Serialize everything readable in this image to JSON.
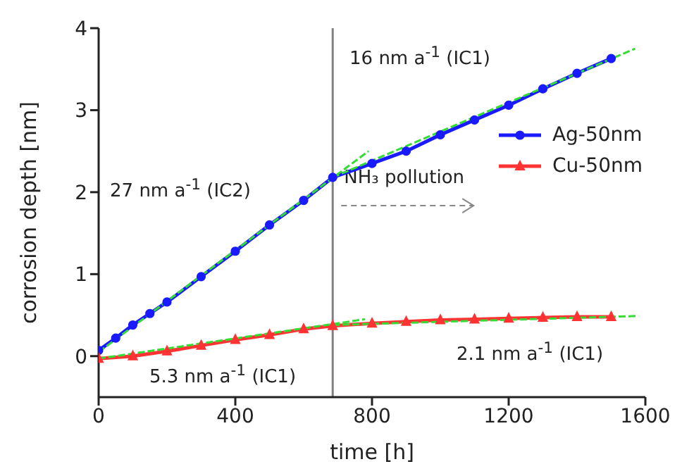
{
  "chart_data": {
    "type": "line",
    "xlabel": "time [h]",
    "ylabel": "corrosion depth [nm]",
    "xlim": [
      0,
      1600
    ],
    "xticks": [
      0,
      400,
      800,
      1200,
      1600
    ],
    "ylim": [
      -0.5,
      4
    ],
    "yticks": [
      0,
      1,
      2,
      3,
      4
    ],
    "grid": false,
    "legend": "right",
    "line_style": "solid",
    "series": [
      {
        "name": "Ag-50nm",
        "color": "#1a1aff",
        "marker": "circle",
        "x": [
          0,
          50,
          100,
          150,
          200,
          300,
          400,
          500,
          600,
          685,
          800,
          900,
          1000,
          1100,
          1200,
          1300,
          1400,
          1500
        ],
        "values": [
          0.07,
          0.22,
          0.38,
          0.52,
          0.66,
          0.97,
          1.28,
          1.6,
          1.9,
          2.18,
          2.35,
          2.5,
          2.7,
          2.88,
          3.06,
          3.26,
          3.45,
          3.63
        ]
      },
      {
        "name": "Cu-50nm",
        "color": "#ff3333",
        "marker": "triangle",
        "x": [
          0,
          100,
          200,
          300,
          400,
          500,
          600,
          685,
          800,
          900,
          1000,
          1100,
          1200,
          1300,
          1400,
          1500
        ],
        "values": [
          -0.03,
          0.0,
          0.06,
          0.13,
          0.2,
          0.26,
          0.33,
          0.37,
          0.4,
          0.42,
          0.44,
          0.45,
          0.46,
          0.47,
          0.48,
          0.48
        ]
      },
      {
        "type": "line",
        "color": "#33dd33",
        "marker": "none",
        "line_style": "dashed",
        "x": [
          0,
          790
        ],
        "values": [
          0.05,
          2.5
        ]
      },
      {
        "type": "line",
        "color": "#33dd33",
        "marker": "none",
        "line_style": "dashed",
        "x": [
          685,
          1570
        ],
        "values": [
          2.18,
          3.75
        ]
      },
      {
        "type": "line",
        "color": "#33dd33",
        "marker": "none",
        "line_style": "dashed",
        "x": [
          0,
          780
        ],
        "values": [
          -0.03,
          0.45
        ]
      },
      {
        "type": "line",
        "color": "#33dd33",
        "marker": "none",
        "line_style": "dashed",
        "x": [
          685,
          1580
        ],
        "values": [
          0.38,
          0.49
        ]
      }
    ],
    "ref_lines": [
      {
        "axis": "x",
        "value": 685,
        "label": "NH₃ pollution",
        "color": "#808080"
      }
    ],
    "annotations": [
      "27 nm a$^{-1}$ (IC2)",
      "16 nm a$^{-1}$ (IC1)",
      "5.3 nm a$^{-1}$ (IC1)",
      "2.1 nm a$^{-1}$ (IC1)"
    ]
  }
}
